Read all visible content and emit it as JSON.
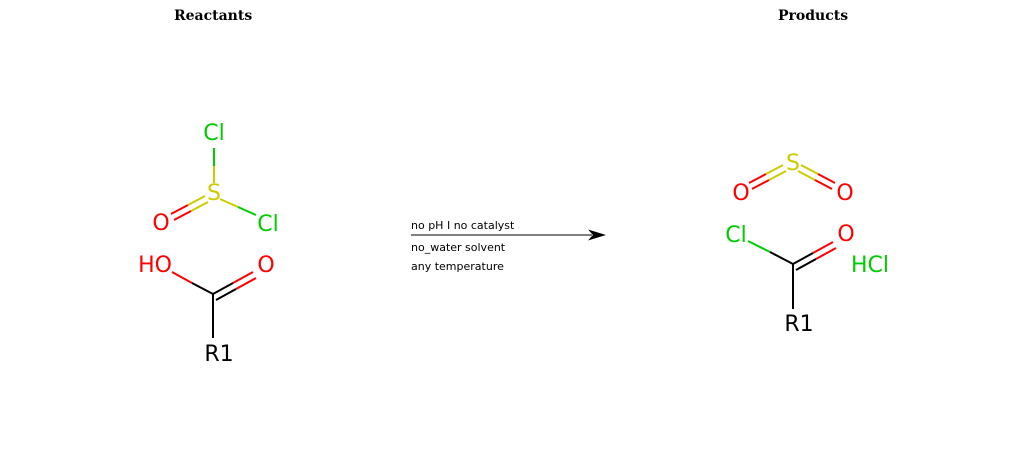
{
  "headings": {
    "reactants": "Reactants",
    "products": "Products"
  },
  "colors": {
    "oxygen": "#ff0000",
    "chlorine": "#00cc00",
    "sulfur": "#cccc00",
    "carbon": "#000000",
    "label": "#000000"
  },
  "reactants": {
    "thionyl_chloride": {
      "atoms": {
        "cl1": "Cl",
        "s": "S",
        "cl2": "Cl",
        "o": "O"
      }
    },
    "carboxylic_acid": {
      "atoms": {
        "ho": "HO",
        "o": "O",
        "r": "R1"
      }
    }
  },
  "conditions": [
    "no pH I no catalyst",
    "no_water solvent",
    "any temperature"
  ],
  "products": {
    "sulfur_dioxide": {
      "atoms": {
        "s": "S",
        "o1": "O",
        "o2": "O"
      }
    },
    "acyl_chloride": {
      "atoms": {
        "cl": "Cl",
        "o": "O",
        "r": "R1"
      }
    },
    "hcl": "HCl"
  }
}
